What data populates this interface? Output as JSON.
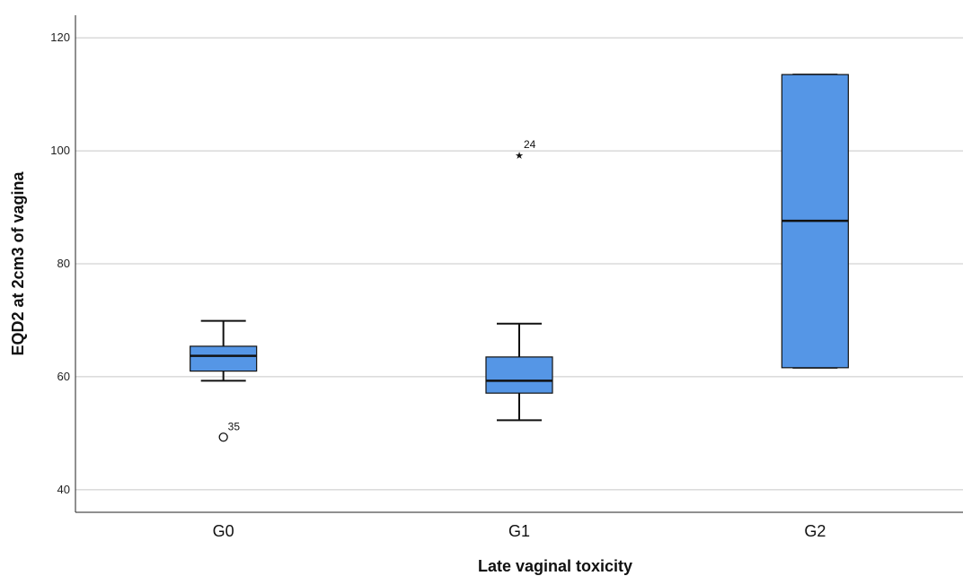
{
  "chart_data": {
    "type": "box",
    "title": "",
    "xlabel": "Late vaginal toxicity",
    "ylabel": "EQD2 at 2cm3 of vagina",
    "ylim": [
      36,
      124
    ],
    "yticks": [
      40,
      60,
      80,
      100,
      120
    ],
    "grid": true,
    "box_color": "#5596e6",
    "categories": [
      "G0",
      "G1",
      "G2"
    ],
    "boxes": [
      {
        "category": "G0",
        "min": 59.3,
        "q1": 61.0,
        "median": 63.7,
        "q3": 65.4,
        "max": 69.9,
        "outliers": [
          {
            "value": 49.3,
            "label": "35",
            "marker": "circle"
          }
        ]
      },
      {
        "category": "G1",
        "min": 52.3,
        "q1": 57.1,
        "median": 59.3,
        "q3": 63.5,
        "max": 69.4,
        "outliers": [
          {
            "value": 99.2,
            "label": "24",
            "marker": "star"
          }
        ]
      },
      {
        "category": "G2",
        "min": 61.6,
        "q1": 61.6,
        "median": 87.6,
        "q3": 113.5,
        "max": 113.5,
        "outliers": []
      }
    ]
  }
}
